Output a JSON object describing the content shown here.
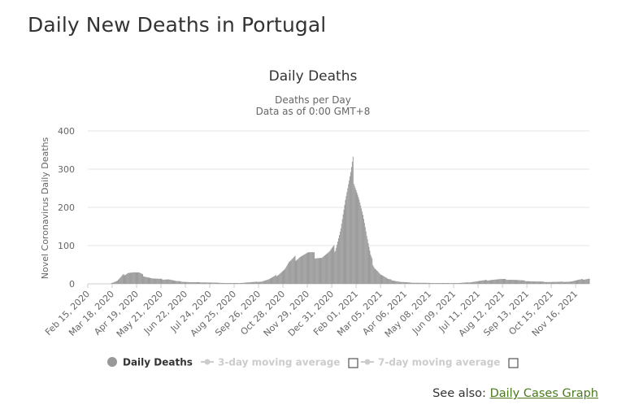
{
  "page": {
    "title": "Daily New Deaths in Portugal",
    "see_also_label": "See also:",
    "see_also_link": "Daily Cases Graph"
  },
  "colors": {
    "bar": "#999999",
    "grid": "#e6e6e6",
    "legend_inactive": "#cccccc",
    "link": "#4a7a1c"
  },
  "chart_data": {
    "type": "bar",
    "title": "Daily Deaths",
    "subtitle": "Deaths per Day",
    "subtitle2": "Data as of 0:00 GMT+8",
    "ylabel": "Novel Coronavirus Daily Deaths",
    "xlabel": "",
    "ylim": [
      0,
      400
    ],
    "yticks": [
      0,
      100,
      200,
      300,
      400
    ],
    "x_start": "2020-02-15",
    "x_end": "2021-12-04",
    "x_tick_labels": [
      "Feb 15, 2020",
      "Mar 18, 2020",
      "Apr 19, 2020",
      "May 21, 2020",
      "Jun 22, 2020",
      "Jul 24, 2020",
      "Aug 25, 2020",
      "Sep 26, 2020",
      "Oct 28, 2020",
      "Nov 29, 2020",
      "Dec 31, 2020",
      "Feb 01, 2021",
      "Mar 05, 2021",
      "Apr 06, 2021",
      "May 08, 2021",
      "Jun 09, 2021",
      "Jul 11, 2021",
      "Aug 12, 2021",
      "Sep 13, 2021",
      "Oct 15, 2021",
      "Nov 16, 2021"
    ],
    "grid": true,
    "series": [
      {
        "name": "Daily Deaths",
        "anchors": [
          [
            "2020-02-15",
            0
          ],
          [
            "2020-03-15",
            0
          ],
          [
            "2020-03-25",
            8
          ],
          [
            "2020-04-01",
            22
          ],
          [
            "2020-04-08",
            30
          ],
          [
            "2020-04-15",
            30
          ],
          [
            "2020-04-22",
            28
          ],
          [
            "2020-04-30",
            20
          ],
          [
            "2020-05-10",
            14
          ],
          [
            "2020-05-20",
            12
          ],
          [
            "2020-05-31",
            12
          ],
          [
            "2020-06-10",
            7
          ],
          [
            "2020-06-30",
            4
          ],
          [
            "2020-07-15",
            4
          ],
          [
            "2020-07-31",
            3
          ],
          [
            "2020-08-15",
            2
          ],
          [
            "2020-08-31",
            2
          ],
          [
            "2020-09-15",
            4
          ],
          [
            "2020-09-30",
            6
          ],
          [
            "2020-10-10",
            12
          ],
          [
            "2020-10-20",
            22
          ],
          [
            "2020-10-31",
            40
          ],
          [
            "2020-11-05",
            55
          ],
          [
            "2020-11-12",
            65
          ],
          [
            "2020-11-20",
            75
          ],
          [
            "2020-11-30",
            80
          ],
          [
            "2020-12-08",
            75
          ],
          [
            "2020-12-18",
            70
          ],
          [
            "2020-12-28",
            80
          ],
          [
            "2021-01-05",
            95
          ],
          [
            "2021-01-12",
            150
          ],
          [
            "2021-01-18",
            215
          ],
          [
            "2021-01-25",
            270
          ],
          [
            "2021-01-28",
            300
          ],
          [
            "2021-02-01",
            265
          ],
          [
            "2021-02-05",
            230
          ],
          [
            "2021-02-10",
            180
          ],
          [
            "2021-02-15",
            120
          ],
          [
            "2021-02-20",
            70
          ],
          [
            "2021-02-25",
            45
          ],
          [
            "2021-03-05",
            25
          ],
          [
            "2021-03-15",
            12
          ],
          [
            "2021-03-31",
            5
          ],
          [
            "2021-04-15",
            3
          ],
          [
            "2021-05-15",
            2
          ],
          [
            "2021-06-15",
            2
          ],
          [
            "2021-06-30",
            4
          ],
          [
            "2021-07-15",
            8
          ],
          [
            "2021-07-31",
            11
          ],
          [
            "2021-08-10",
            12
          ],
          [
            "2021-08-25",
            11
          ],
          [
            "2021-09-10",
            8
          ],
          [
            "2021-09-25",
            6
          ],
          [
            "2021-10-10",
            5
          ],
          [
            "2021-10-25",
            5
          ],
          [
            "2021-11-10",
            6
          ],
          [
            "2021-11-20",
            10
          ],
          [
            "2021-12-04",
            14
          ]
        ]
      }
    ],
    "legend": {
      "placement": "bottom",
      "items": [
        {
          "label": "Daily Deaths",
          "active": true
        },
        {
          "label": "3-day moving average",
          "active": false
        },
        {
          "label": "7-day moving average",
          "active": false
        }
      ]
    }
  }
}
